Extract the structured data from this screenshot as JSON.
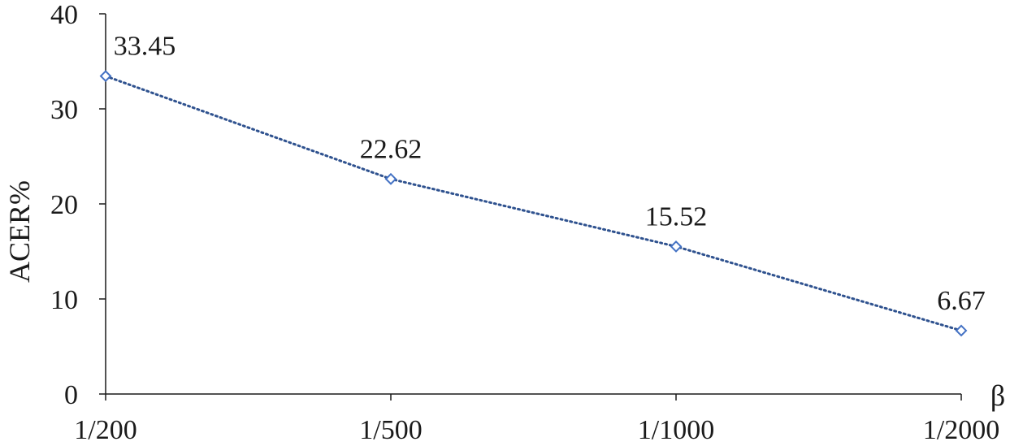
{
  "chart_data": {
    "type": "line",
    "title": "",
    "xlabel": "β",
    "ylabel": "ACER%",
    "categories": [
      "1/200",
      "1/500",
      "1/1000",
      "1/2000"
    ],
    "series": [
      {
        "values": [
          33.45,
          22.62,
          15.52,
          6.67
        ],
        "data_labels": [
          "33.45",
          "22.62",
          "15.52",
          "6.67"
        ],
        "line_style": "dotted",
        "marker": "diamond-open"
      }
    ],
    "ylim": [
      0,
      40
    ],
    "yticks": [
      0,
      10,
      20,
      30,
      40
    ],
    "ytick_labels": [
      "0",
      "10",
      "20",
      "30",
      "40"
    ],
    "grid": false,
    "legend": "none",
    "colors": {
      "series": "#2f528f",
      "marker": "#4472c4",
      "axis": "#1a1a1a"
    }
  }
}
